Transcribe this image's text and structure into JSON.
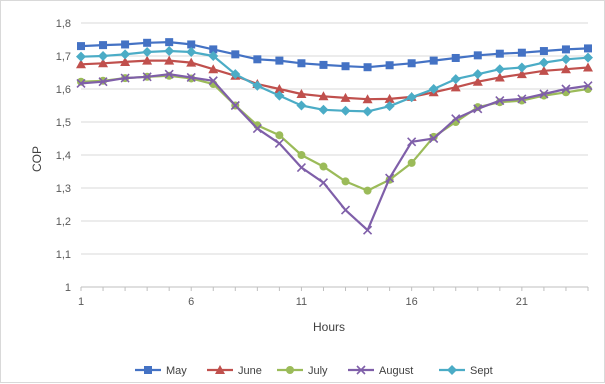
{
  "chart_data": {
    "type": "line",
    "xlabel": "Hours",
    "ylabel": "COP",
    "ylim": [
      1,
      1.8
    ],
    "y_ticks": [
      "1",
      "1,1",
      "1,2",
      "1,3",
      "1,4",
      "1,5",
      "1,6",
      "1,7",
      "1,8"
    ],
    "y_tick_values": [
      1,
      1.1,
      1.2,
      1.3,
      1.4,
      1.5,
      1.6,
      1.7,
      1.8
    ],
    "x_ticks": [
      "1",
      "6",
      "11",
      "16",
      "21"
    ],
    "x_tick_values": [
      1,
      6,
      11,
      16,
      21
    ],
    "xlim": [
      1,
      24
    ],
    "grid": "horizontal",
    "legend_position": "bottom",
    "x": [
      1,
      2,
      3,
      4,
      5,
      6,
      7,
      8,
      9,
      10,
      11,
      12,
      13,
      14,
      15,
      16,
      17,
      18,
      19,
      20,
      21,
      22,
      23,
      24
    ],
    "series": [
      {
        "name": "May",
        "color": "#4472c4",
        "marker": "square",
        "values": [
          1.73,
          1.733,
          1.735,
          1.74,
          1.742,
          1.735,
          1.72,
          1.705,
          1.69,
          1.686,
          1.678,
          1.673,
          1.669,
          1.666,
          1.672,
          1.678,
          1.686,
          1.694,
          1.702,
          1.707,
          1.71,
          1.715,
          1.72,
          1.723
        ]
      },
      {
        "name": "June",
        "color": "#c0504d",
        "marker": "triangle",
        "values": [
          1.675,
          1.678,
          1.682,
          1.686,
          1.686,
          1.68,
          1.66,
          1.64,
          1.615,
          1.6,
          1.585,
          1.578,
          1.573,
          1.569,
          1.57,
          1.576,
          1.59,
          1.605,
          1.622,
          1.635,
          1.645,
          1.655,
          1.66,
          1.665
        ]
      },
      {
        "name": "July",
        "color": "#9bbb59",
        "marker": "circle",
        "values": [
          1.622,
          1.625,
          1.633,
          1.637,
          1.64,
          1.632,
          1.615,
          1.55,
          1.49,
          1.46,
          1.4,
          1.365,
          1.32,
          1.292,
          1.325,
          1.376,
          1.455,
          1.5,
          1.545,
          1.56,
          1.565,
          1.58,
          1.59,
          1.6
        ]
      },
      {
        "name": "August",
        "color": "#7f5fa9",
        "marker": "x",
        "values": [
          1.617,
          1.622,
          1.633,
          1.637,
          1.645,
          1.635,
          1.625,
          1.55,
          1.48,
          1.435,
          1.362,
          1.316,
          1.233,
          1.172,
          1.33,
          1.44,
          1.45,
          1.51,
          1.54,
          1.565,
          1.57,
          1.585,
          1.6,
          1.61
        ]
      },
      {
        "name": "Sept",
        "color": "#4bacc6",
        "marker": "diamond",
        "values": [
          1.698,
          1.7,
          1.705,
          1.712,
          1.715,
          1.712,
          1.7,
          1.645,
          1.61,
          1.58,
          1.55,
          1.537,
          1.534,
          1.532,
          1.548,
          1.575,
          1.6,
          1.63,
          1.645,
          1.66,
          1.665,
          1.68,
          1.69,
          1.695
        ]
      }
    ]
  }
}
